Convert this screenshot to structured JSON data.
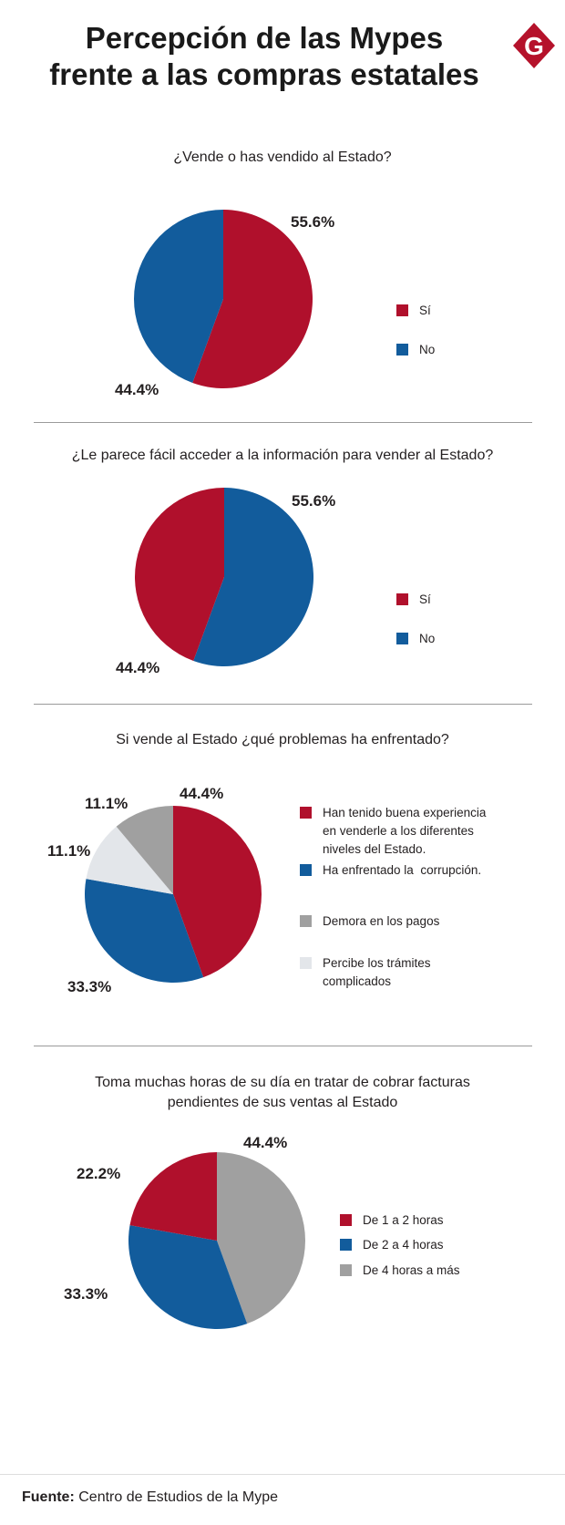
{
  "header": {
    "title_line1": "Percepción de las Mypes",
    "title_line2": "frente a las compras estatales",
    "logo_letter": "G",
    "logo_color": "#b5122b"
  },
  "colors": {
    "red": "#b0102c",
    "blue": "#125c9c",
    "gray": "#a0a0a0",
    "light_gray": "#e3e6ea"
  },
  "chart_data": [
    {
      "type": "pie",
      "title": "¿Vende o has vendido al Estado?",
      "labels": [
        "Sí",
        "No"
      ],
      "values": [
        55.6,
        44.4
      ],
      "value_labels": [
        "55.6%",
        "44.4%"
      ],
      "colors": [
        "#b0102c",
        "#125c9c"
      ],
      "legend": [
        {
          "label": "Sí",
          "color": "#b0102c"
        },
        {
          "label": "No",
          "color": "#125c9c"
        }
      ]
    },
    {
      "type": "pie",
      "title": "¿Le parece fácil acceder a la información para vender al Estado?",
      "labels": [
        "No",
        "Sí"
      ],
      "values": [
        55.6,
        44.4
      ],
      "value_labels": [
        "55.6%",
        "44.4%"
      ],
      "colors": [
        "#125c9c",
        "#b0102c"
      ],
      "legend": [
        {
          "label": "Sí",
          "color": "#b0102c"
        },
        {
          "label": "No",
          "color": "#125c9c"
        }
      ]
    },
    {
      "type": "pie",
      "title": "Si vende al Estado ¿qué problemas ha enfrentado?",
      "labels": [
        "Han tenido buena experiencia en venderle a los diferentes niveles del Estado.",
        "Ha enfrentado la corrupción.",
        "Percibe los trámites complicados",
        "Demora en los pagos"
      ],
      "values": [
        44.4,
        33.3,
        11.1,
        11.1
      ],
      "value_labels": [
        "44.4%",
        "33.3%",
        "11.1%",
        "11.1%"
      ],
      "colors": [
        "#b0102c",
        "#125c9c",
        "#e3e6ea",
        "#a0a0a0"
      ],
      "legend": [
        {
          "label": "Han tenido buena experiencia en venderle a los diferentes niveles del Estado.",
          "color": "#b0102c"
        },
        {
          "label": "Ha enfrentado la  corrupción.",
          "color": "#125c9c"
        },
        {
          "label": "Demora en los pagos",
          "color": "#a0a0a0"
        },
        {
          "label": "Percibe los trámites complicados",
          "color": "#e3e6ea"
        }
      ]
    },
    {
      "type": "pie",
      "title": "Toma muchas horas de su día en tratar de cobrar facturas pendientes de sus ventas al Estado",
      "labels": [
        "De 4 horas a más",
        "De 2 a 4 horas",
        "De 1 a 2 horas"
      ],
      "values": [
        44.4,
        33.3,
        22.2
      ],
      "value_labels": [
        "44.4%",
        "33.3%",
        "22.2%"
      ],
      "colors": [
        "#a0a0a0",
        "#125c9c",
        "#b0102c"
      ],
      "legend": [
        {
          "label": "De 1 a 2 horas",
          "color": "#b0102c"
        },
        {
          "label": "De 2 a 4 horas",
          "color": "#125c9c"
        },
        {
          "label": "De 4 horas a más",
          "color": "#a0a0a0"
        }
      ]
    }
  ],
  "footer": {
    "source_label": "Fuente:",
    "source_text": "Centro de Estudios de la Mype"
  }
}
